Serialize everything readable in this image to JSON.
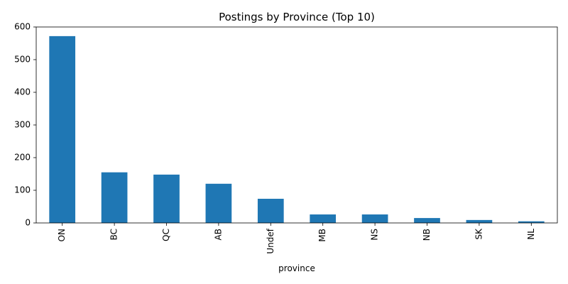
{
  "chart_data": {
    "type": "bar",
    "title": "Postings by Province (Top 10)",
    "xlabel": "province",
    "ylabel": "",
    "categories": [
      "ON",
      "BC",
      "QC",
      "AB",
      "Undef",
      "MB",
      "NS",
      "NB",
      "SK",
      "NL"
    ],
    "values": [
      572,
      155,
      148,
      120,
      74,
      26,
      26,
      15,
      9,
      5
    ],
    "ylim": [
      0,
      600
    ],
    "yticks": [
      0,
      100,
      200,
      300,
      400,
      500,
      600
    ],
    "bar_color": "#1f77b4",
    "grid": false,
    "legend": "none"
  }
}
